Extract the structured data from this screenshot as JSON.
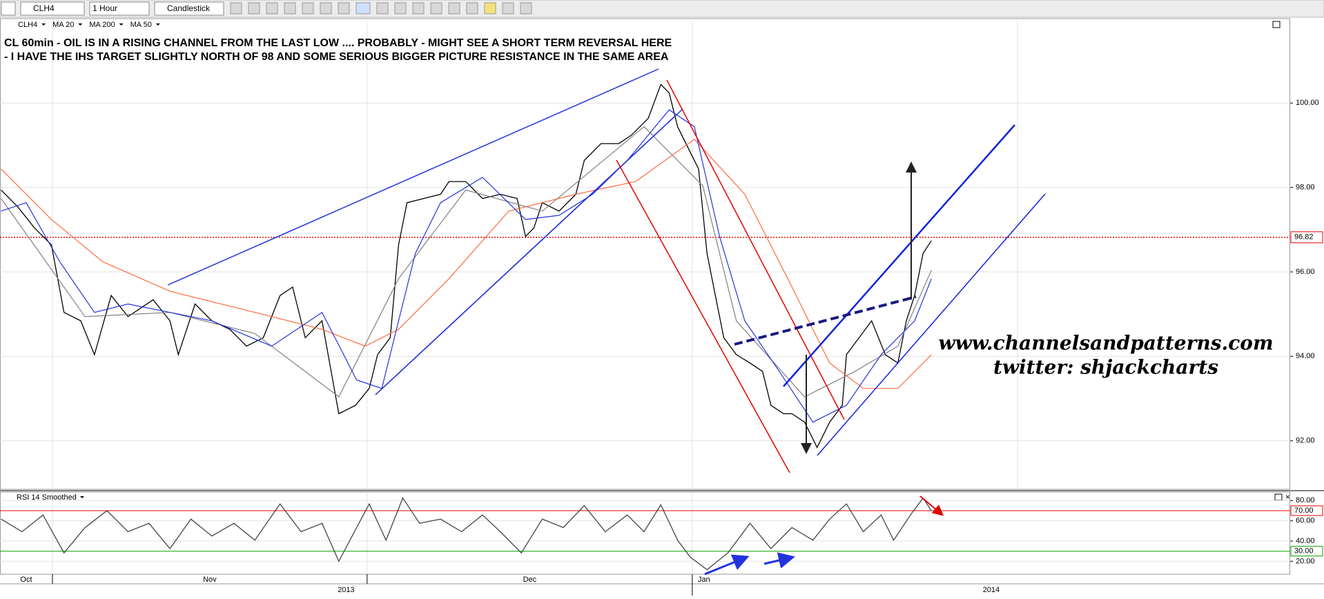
{
  "toolbar": {
    "symbol": "CLH4",
    "interval": "1 Hour",
    "style": "Candlestick"
  },
  "chart_data": [
    {
      "type": "line",
      "title": "CL 60min - OIL IS IN A RISING CHANNEL FROM THE LAST LOW .... PROBABLY - MIGHT SEE A SHORT TERM REVERSAL HERE",
      "subtitle": "- I HAVE THE IHS TARGET SLIGHTLY NORTH OF 98 AND SOME SERIOUS BIGGER PICTURE RESISTANCE IN THE SAME AREA",
      "annotations": [
        "www.channelsandpatterns.com",
        "twitter: shjackcharts"
      ],
      "xlim": [
        26,
        149
      ],
      "xticks": [
        31,
        61,
        92,
        123
      ],
      "ylim": [
        90.85,
        102
      ],
      "yticks": [
        {
          "value": 92,
          "label": "92.00"
        },
        {
          "value": 94,
          "label": "94.00"
        },
        {
          "value": 96,
          "label": "96.00"
        },
        {
          "value": 98,
          "label": "98.00"
        },
        {
          "value": 100,
          "label": "100.00"
        }
      ],
      "last_price": 96.82,
      "last_price_color": "#e00000",
      "series": [
        {
          "name": "CLH4",
          "color": "#000000",
          "x": [
            26.1,
            27.7,
            29.3,
            30.9,
            32.1,
            33.7,
            35.0,
            36.6,
            38.2,
            40.6,
            42.2,
            43.0,
            44.6,
            46.2,
            47.9,
            49.5,
            51.1,
            52.7,
            53.9,
            55.1,
            56.7,
            58.3,
            59.9,
            61.2,
            62.0,
            63.2,
            64.0,
            64.8,
            66.4,
            68.0,
            68.8,
            70.4,
            72.0,
            73.7,
            75.3,
            76.1,
            76.9,
            77.7,
            79.3,
            80.9,
            81.7,
            83.3,
            85.0,
            86.2,
            87.8,
            89.0,
            89.8,
            90.6,
            91.8,
            92.6,
            93.4,
            94.2,
            95.0,
            96.2,
            97.5,
            98.7,
            99.5,
            100.7,
            101.5,
            102.7,
            103.9,
            105.1,
            106.3,
            106.7,
            107.9,
            109.1,
            110.4,
            111.6,
            112.4,
            113.2,
            114.0,
            114.8
          ],
          "values": [
            97.94,
            97.54,
            97.04,
            96.64,
            95.04,
            94.84,
            94.04,
            95.44,
            94.94,
            95.34,
            94.84,
            94.04,
            95.24,
            94.84,
            94.64,
            94.24,
            94.44,
            95.44,
            95.64,
            94.44,
            94.84,
            92.64,
            92.84,
            93.24,
            94.04,
            94.44,
            96.64,
            97.64,
            97.74,
            97.84,
            98.14,
            98.14,
            97.74,
            97.84,
            97.74,
            96.84,
            97.04,
            97.64,
            97.44,
            97.84,
            98.64,
            99.04,
            99.04,
            99.24,
            99.64,
            100.44,
            100.24,
            99.44,
            98.84,
            98.44,
            96.44,
            95.44,
            94.44,
            94.04,
            93.84,
            93.64,
            92.84,
            92.64,
            92.64,
            92.44,
            91.84,
            92.44,
            92.84,
            94.04,
            94.44,
            94.84,
            94.04,
            93.84,
            94.84,
            95.44,
            96.44,
            96.74
          ]
        },
        {
          "name": "MA 20",
          "color": "#808080",
          "x": [
            26.1,
            34.1,
            42.2,
            50.3,
            58.3,
            64.0,
            70.4,
            77.7,
            87.4,
            93.0,
            96.2,
            102.7,
            107.5,
            111.6,
            114.8
          ],
          "values": [
            97.74,
            94.94,
            95.04,
            94.54,
            93.04,
            95.84,
            97.94,
            97.44,
            99.44,
            98.04,
            94.84,
            93.04,
            93.64,
            94.24,
            96.04
          ]
        },
        {
          "name": "MA 200",
          "color": "#ff6a3d",
          "x": [
            26.1,
            30.9,
            35.8,
            42.2,
            50.3,
            56.7,
            60.8,
            64.0,
            68.8,
            74.5,
            80.9,
            86.6,
            92.2,
            97.0,
            101.1,
            105.1,
            108.3,
            111.6,
            114.8
          ],
          "values": [
            98.44,
            97.24,
            96.24,
            95.54,
            95.04,
            94.64,
            94.24,
            94.64,
            95.84,
            97.44,
            97.84,
            98.14,
            99.14,
            97.84,
            95.84,
            93.84,
            93.24,
            93.24,
            94.04
          ]
        },
        {
          "name": "MA 50",
          "color": "#2233dd",
          "x": [
            26.1,
            28.5,
            31.7,
            35.0,
            38.2,
            42.2,
            46.2,
            51.9,
            56.7,
            60.0,
            62.4,
            65.6,
            68.0,
            72.0,
            76.1,
            79.3,
            82.5,
            85.8,
            89.8,
            92.2,
            94.6,
            97.0,
            100.3,
            103.5,
            106.7,
            110.0,
            113.2,
            114.8
          ],
          "values": [
            97.44,
            97.64,
            96.24,
            95.04,
            95.24,
            95.04,
            94.84,
            94.24,
            95.04,
            93.44,
            93.24,
            96.44,
            97.64,
            98.24,
            97.24,
            97.34,
            97.84,
            98.64,
            99.84,
            99.44,
            96.84,
            94.84,
            93.64,
            92.44,
            92.84,
            94.04,
            94.84,
            95.84
          ]
        }
      ]
    },
    {
      "type": "line",
      "title": "RSI 14 Smoothed",
      "xlim": [
        26,
        149
      ],
      "xticks": [
        {
          "value": 0,
          "label": "Oct"
        },
        {
          "value": 31,
          "label": "Nov"
        },
        {
          "value": 61,
          "label": "Dec"
        },
        {
          "value": 92,
          "label": "Jan"
        }
      ],
      "years": [
        "2013",
        "2014"
      ],
      "year_boundary": 92,
      "ylim": [
        7.3,
        88.4
      ],
      "yticks": [
        {
          "value": 20,
          "label": "20.00"
        },
        {
          "value": 40,
          "label": "40.00"
        },
        {
          "value": 60,
          "label": "60.00"
        },
        {
          "value": 80,
          "label": "80.00"
        }
      ],
      "levels": [
        {
          "value": 70,
          "label": "70.00",
          "color": "#e00000"
        },
        {
          "value": 30,
          "label": "30.00",
          "color": "#00a000"
        }
      ],
      "series": [
        {
          "name": "RSI",
          "color": "#444444",
          "x": [
            26.1,
            28.1,
            30.1,
            32.1,
            34.1,
            36.2,
            38.2,
            40.2,
            42.2,
            44.2,
            46.2,
            48.3,
            50.3,
            52.7,
            54.7,
            56.7,
            58.3,
            60.0,
            61.2,
            62.8,
            64.4,
            66.0,
            68.0,
            70.0,
            72.0,
            73.7,
            75.7,
            77.7,
            79.7,
            81.7,
            83.7,
            85.8,
            87.4,
            89.0,
            90.6,
            91.8,
            93.4,
            95.4,
            97.5,
            99.5,
            101.5,
            103.5,
            105.1,
            106.7,
            108.3,
            110.0,
            111.2,
            112.8,
            114.0,
            114.8
          ],
          "values": [
            61.7,
            49.2,
            65.8,
            28.3,
            53.3,
            70,
            49.2,
            57.5,
            32.5,
            61.7,
            45,
            57.5,
            40.8,
            76.7,
            49.2,
            57.5,
            20,
            53.3,
            76.7,
            40.8,
            82.5,
            57.5,
            61.7,
            49.2,
            65.8,
            49.2,
            28.3,
            61.7,
            53.3,
            75,
            49.2,
            65.8,
            49.2,
            75.8,
            40.8,
            24.2,
            11.7,
            28.3,
            57.5,
            32.5,
            53.3,
            40.8,
            61.7,
            76.7,
            49.2,
            65.8,
            40.8,
            65.8,
            82.5,
            70
          ]
        }
      ]
    }
  ]
}
